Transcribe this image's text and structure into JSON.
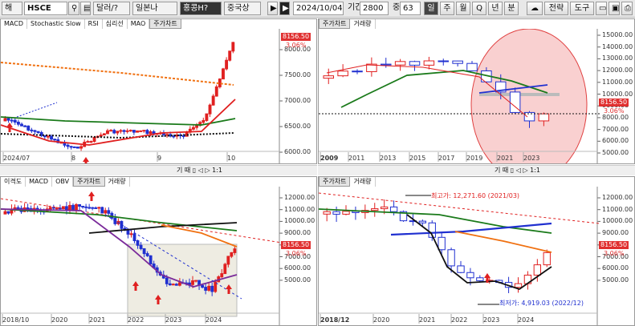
{
  "toolbar": {
    "mode_label": "해",
    "symbol": "HSCE",
    "currency": "달러/?",
    "period_type": "일본나",
    "market": "홍콩H?",
    "region": "중국상",
    "date": "2024/10/04",
    "period_label": "기간",
    "period_value": "2800",
    "count_label": "중",
    "count_value": "63",
    "buttons": [
      "일",
      "주",
      "월",
      "Q",
      "년",
      "분"
    ],
    "strategy_label": "전략",
    "tools_label": "도구"
  },
  "panels": [
    {
      "id": "tl",
      "tabs": [
        "MACD",
        "Stochastic Slow",
        "RSI",
        "심리선",
        "MAO",
        "주가차트"
      ],
      "active_tab": "주가차트",
      "y_ticks": [
        "8000.00",
        "7500.00",
        "7000.00",
        "6500.00",
        "6000.00"
      ],
      "x_labels": [
        "2024/07",
        "8",
        "9",
        "10"
      ],
      "last_price": "8156.50",
      "change": "3.06%"
    },
    {
      "id": "tr",
      "tabs": [
        "주가차트",
        "거래량"
      ],
      "active_tab": "주가차트",
      "y_ticks": [
        "15000.00",
        "14000.00",
        "13000.00",
        "12000.00",
        "11000.00",
        "10000.00",
        "9000.00",
        "8000.00",
        "7000.00",
        "6000.00",
        "5000.00"
      ],
      "x_labels": [
        "2009",
        "2011",
        "2013",
        "2015",
        "2017",
        "2019",
        "2021",
        "2023"
      ],
      "last_price": "8156.50",
      "change": "3.06%",
      "minibar": "기 때 ▯ ◁ ▷ 1:1"
    },
    {
      "id": "bl",
      "tabs": [
        "이격도",
        "MACD",
        "OBV",
        "주가차트",
        "거래량"
      ],
      "active_tab": "주가차트",
      "y_ticks": [
        "12000.00",
        "11000.00",
        "10000.00",
        "9000.00",
        "8000.00",
        "7000.00",
        "6000.00",
        "5000.00"
      ],
      "x_labels": [
        "2018/10",
        "2020",
        "2021",
        "2022",
        "2023",
        "2024"
      ],
      "last_price": "8156.50",
      "change": "3.06%",
      "minibar": "기 때 ▯ ◁ ▷ 1:1"
    },
    {
      "id": "br",
      "tabs": [
        "주가차트",
        "거래량"
      ],
      "active_tab": "주가차트",
      "y_ticks": [
        "12000.00",
        "11000.00",
        "10000.00",
        "9000.00",
        "8000.00",
        "7000.00",
        "6000.00",
        "5000.00"
      ],
      "x_labels": [
        "2018/12",
        "2020",
        "2021",
        "2022",
        "2023",
        "2024"
      ],
      "last_price": "8156.50",
      "change": "3.06%",
      "high_annot": "최고가: 12,271.60 (2021/03)",
      "low_annot": "최저가: 4,919.03 (2022/12)"
    }
  ],
  "colors": {
    "up": "#e02020",
    "down": "#2030d0",
    "ma_green": "#1a7a1a",
    "ma_orange": "#f07010",
    "ma_black": "#111111",
    "ma_blue": "#1a3ae0"
  }
}
